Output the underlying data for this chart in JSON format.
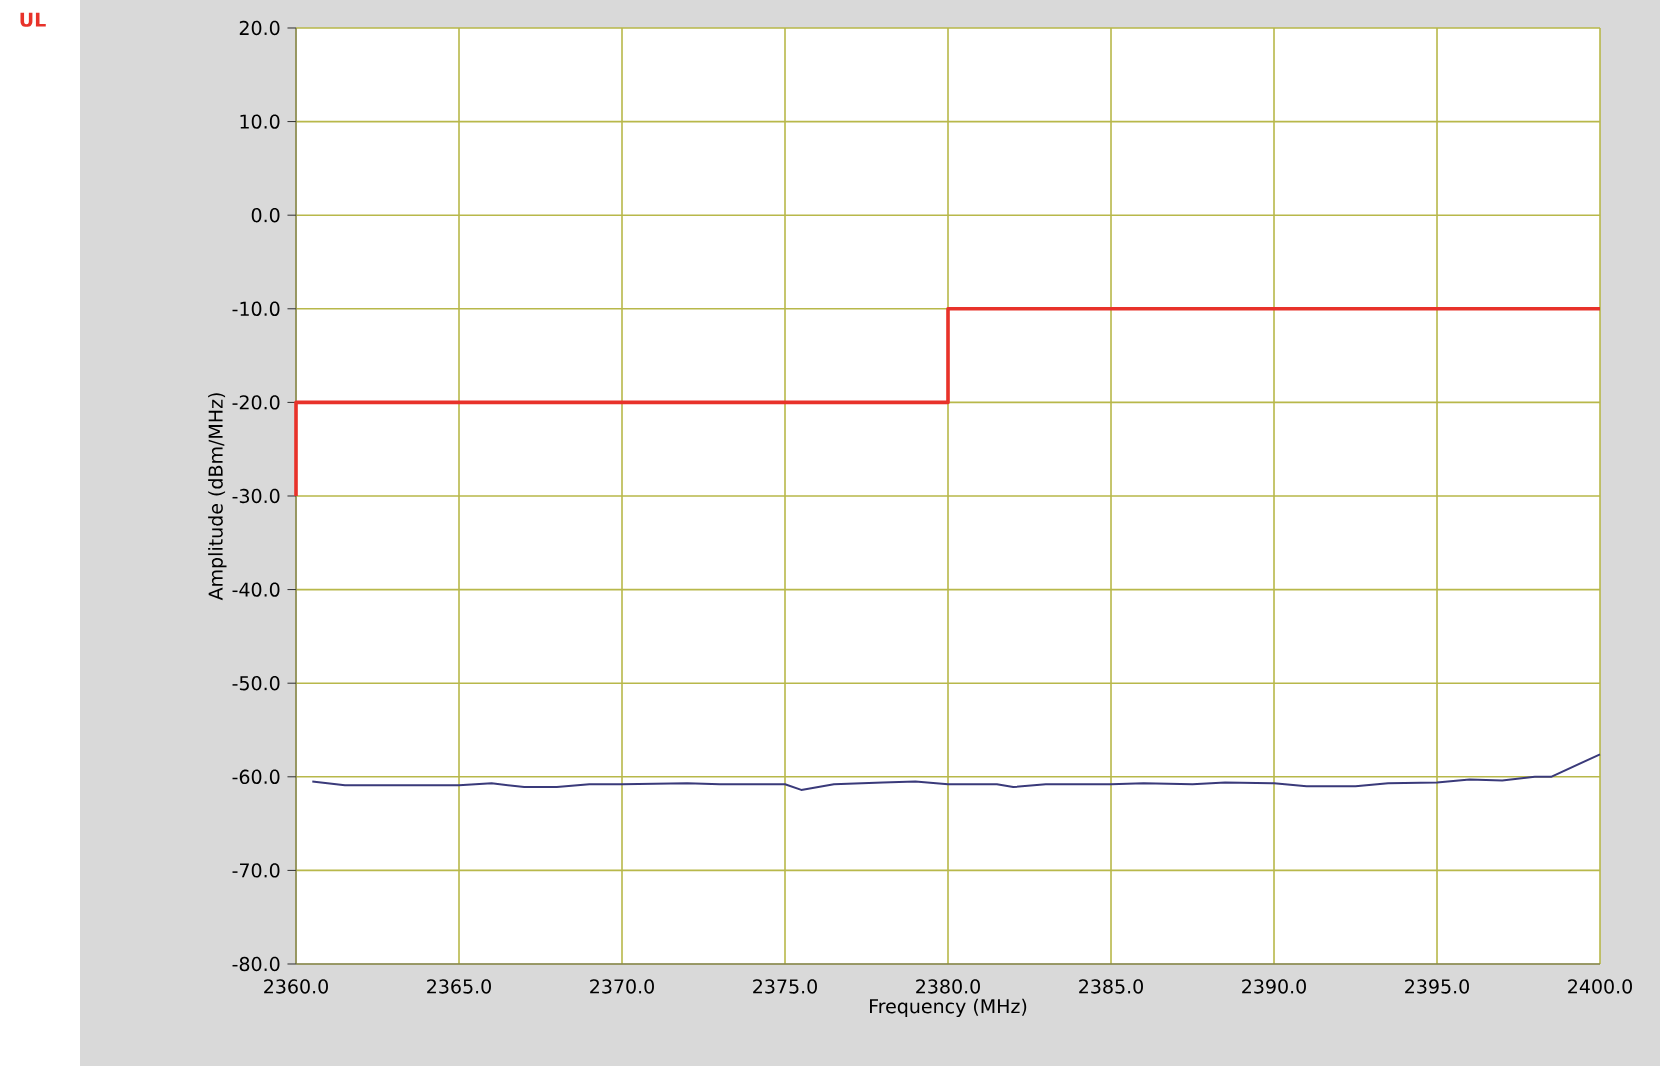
{
  "chart_data": {
    "type": "line",
    "xlabel": "Frequency (MHz)",
    "ylabel": "Amplitude (dBm/MHz)",
    "xlim": [
      2360,
      2400
    ],
    "ylim": [
      -80,
      20
    ],
    "xticks": [
      {
        "value": 2360,
        "label": "2360.0"
      },
      {
        "value": 2365,
        "label": "2365.0"
      },
      {
        "value": 2370,
        "label": "2370.0"
      },
      {
        "value": 2375,
        "label": "2375.0"
      },
      {
        "value": 2380,
        "label": "2380.0"
      },
      {
        "value": 2385,
        "label": "2385.0"
      },
      {
        "value": 2390,
        "label": "2390.0"
      },
      {
        "value": 2395,
        "label": "2395.0"
      },
      {
        "value": 2400,
        "label": "2400.0"
      }
    ],
    "yticks": [
      {
        "value": -80,
        "label": "-80.0"
      },
      {
        "value": -70,
        "label": "-70.0"
      },
      {
        "value": -60,
        "label": "-60.0"
      },
      {
        "value": -50,
        "label": "-50.0"
      },
      {
        "value": -40,
        "label": "-40.0"
      },
      {
        "value": -30,
        "label": "-30.0"
      },
      {
        "value": -20,
        "label": "-20.0"
      },
      {
        "value": -10,
        "label": "-10.0"
      },
      {
        "value": 0,
        "label": "0.0"
      },
      {
        "value": 10,
        "label": "10.0"
      },
      {
        "value": 20,
        "label": "20.0"
      }
    ],
    "grid": true,
    "legend": false,
    "marker": "none",
    "line_style": "solid",
    "series": [
      {
        "name": "UL",
        "color": "#e8322a",
        "x": [
          2360,
          2360,
          2380,
          2380,
          2400
        ],
        "values": [
          -30,
          -20,
          -20,
          -10,
          -10
        ]
      },
      {
        "color": "#3a3a7a",
        "x": [
          2360.5,
          2361.5,
          2365,
          2366,
          2367,
          2368,
          2369,
          2370,
          2372,
          2373,
          2375,
          2375.5,
          2376.5,
          2378,
          2379,
          2380,
          2381.5,
          2382,
          2383,
          2385,
          2386,
          2387.5,
          2388.5,
          2390,
          2391,
          2392.5,
          2393.5,
          2395,
          2396,
          2397,
          2398,
          2398.5,
          2400
        ],
        "values": [
          -60.5,
          -60.9,
          -60.9,
          -60.7,
          -61.1,
          -61.1,
          -60.8,
          -60.8,
          -60.7,
          -60.8,
          -60.8,
          -61.4,
          -60.8,
          -60.6,
          -60.5,
          -60.8,
          -60.8,
          -61.1,
          -60.8,
          -60.8,
          -60.7,
          -60.8,
          -60.6,
          -60.7,
          -61.0,
          -61.0,
          -60.7,
          -60.6,
          -60.3,
          -60.4,
          -60.0,
          -60.0,
          -57.6
        ]
      }
    ]
  }
}
